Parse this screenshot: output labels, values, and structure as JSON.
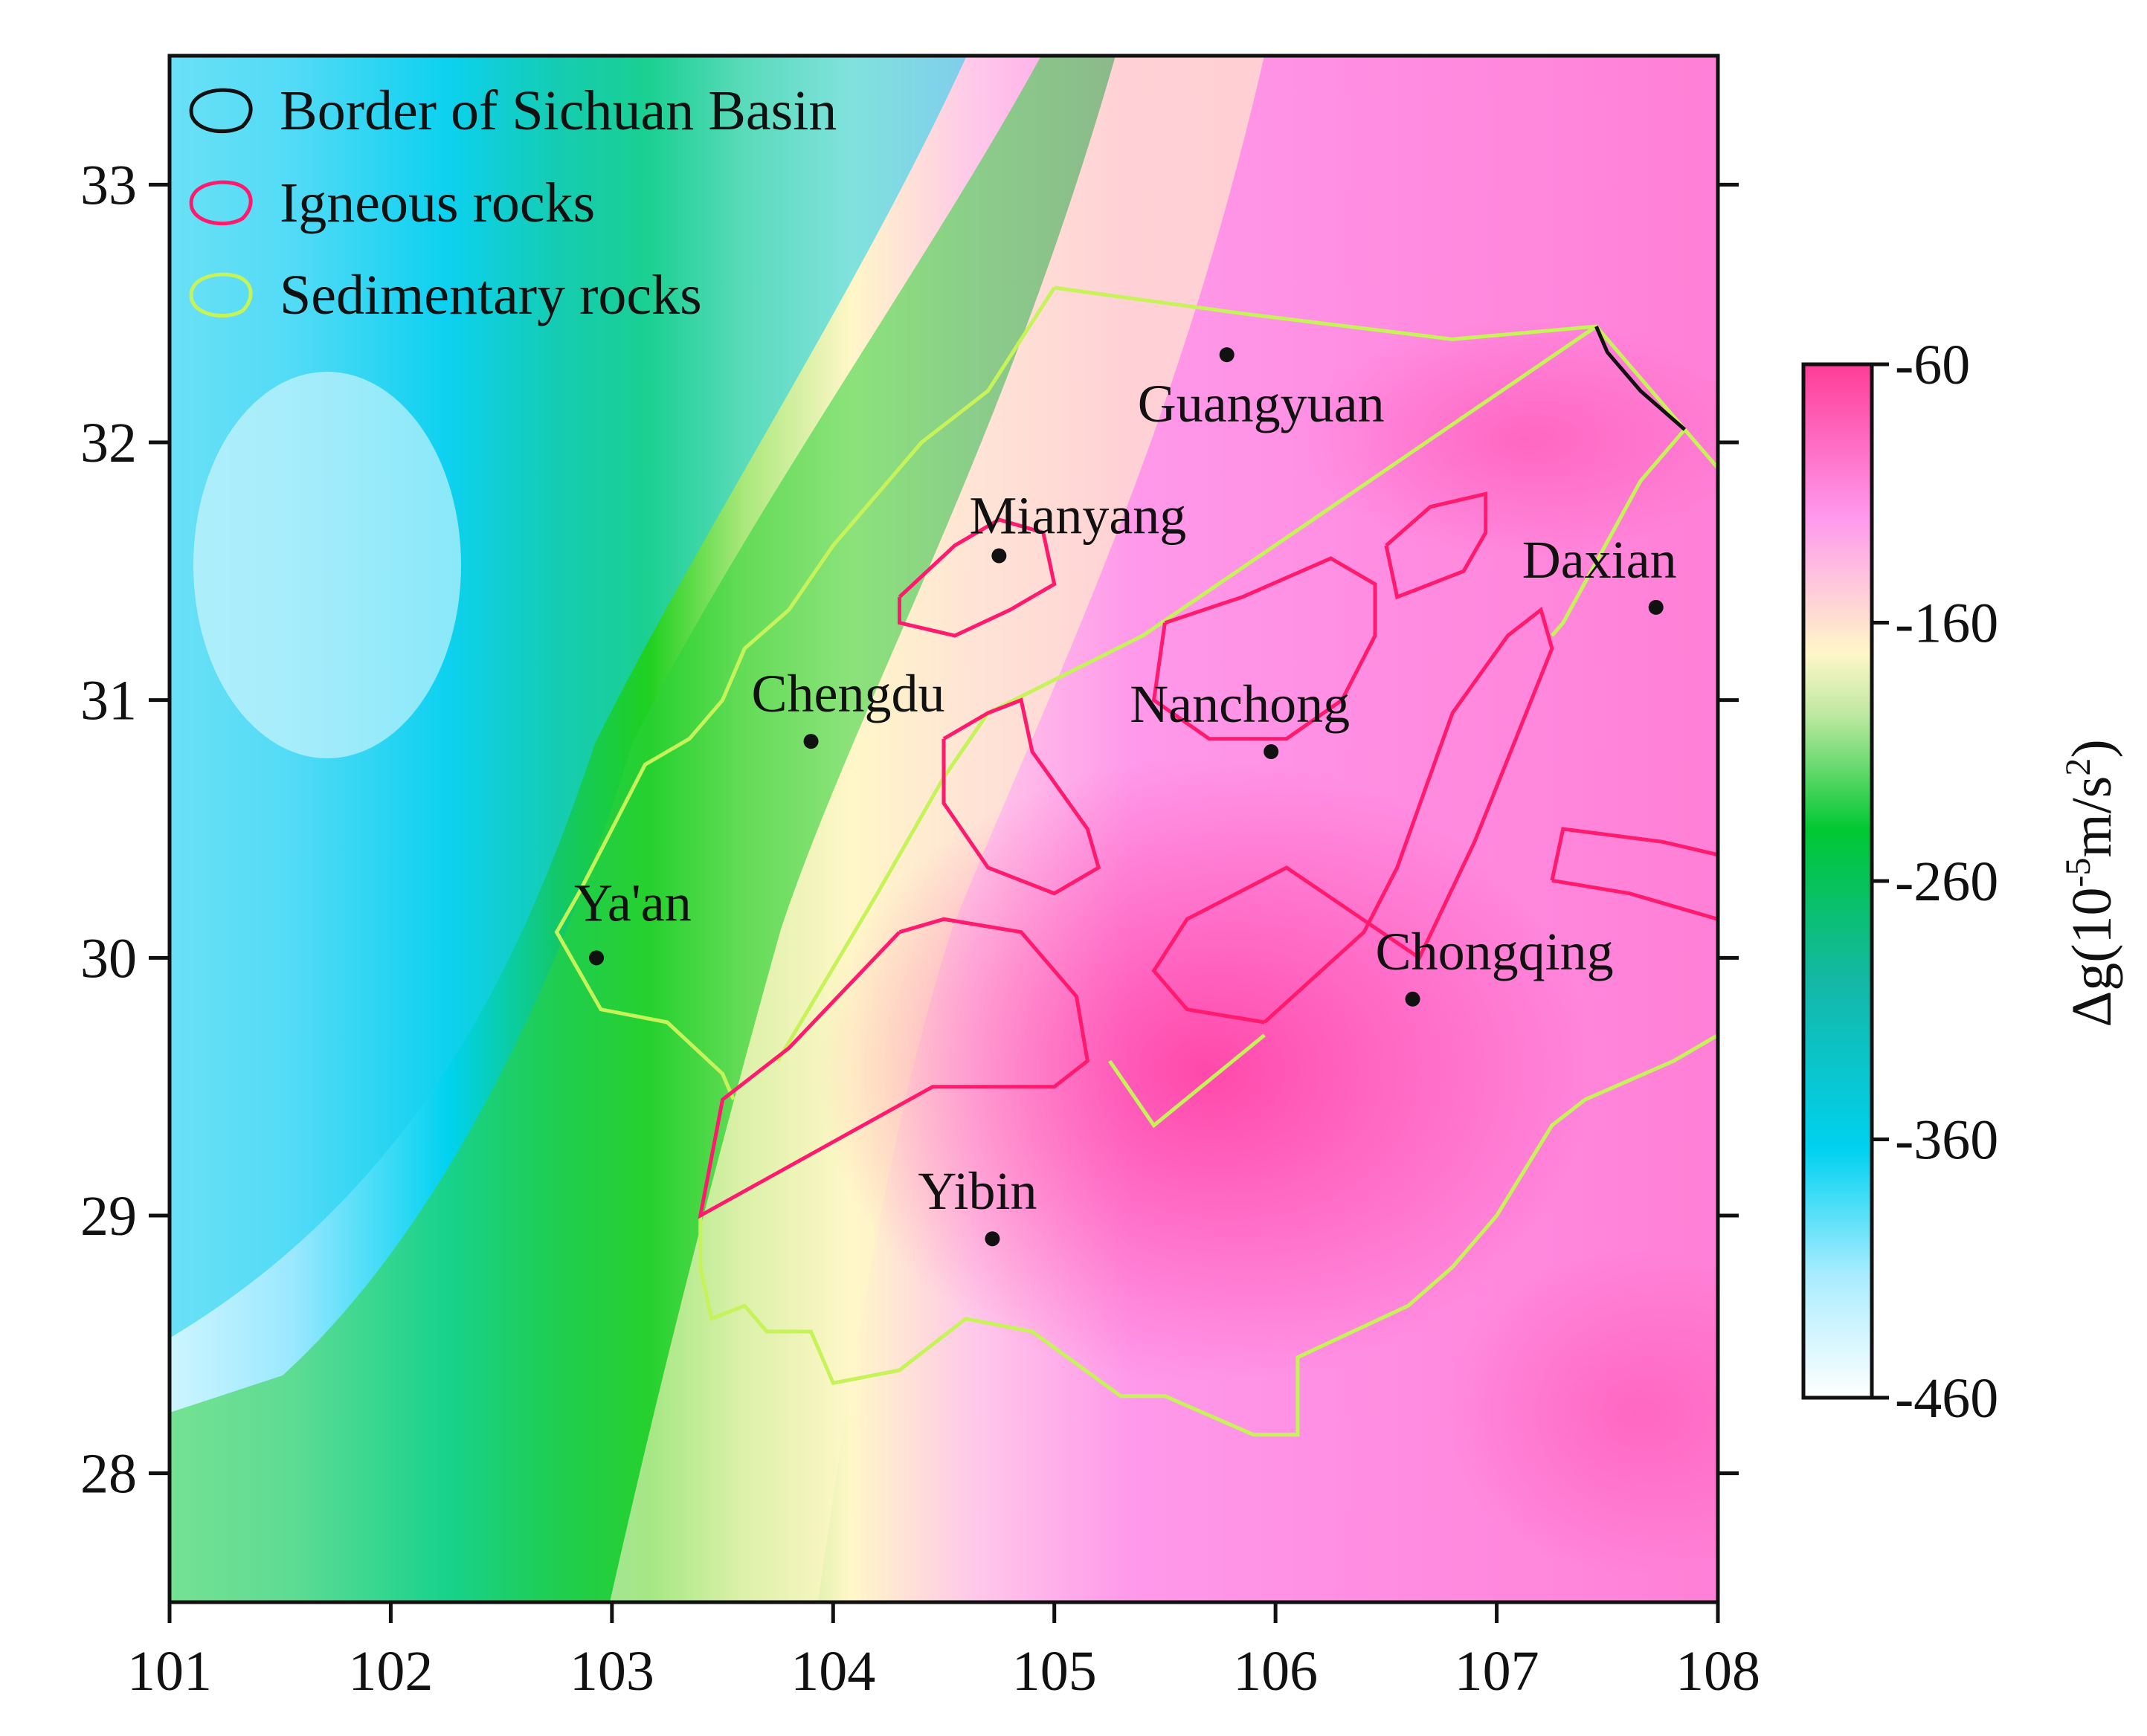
{
  "map": {
    "xlim": [
      101,
      108
    ],
    "ylim": [
      27.5,
      33.5
    ],
    "x_ticks": [
      "101",
      "102",
      "103",
      "104",
      "105",
      "106",
      "107",
      "108"
    ],
    "y_ticks": [
      "28",
      "29",
      "30",
      "31",
      "32",
      "33"
    ]
  },
  "legend": {
    "placement": "top-left",
    "entries": [
      {
        "label": "Border of Sichuan Basin",
        "color": "#111111"
      },
      {
        "label": "Igneous rocks",
        "color": "#ff1a6e"
      },
      {
        "label": "Sedimentary rocks",
        "color": "#c6f25a"
      }
    ]
  },
  "colorbar": {
    "title_main": "Δg(10",
    "title_sup1": "-5",
    "title_mid": "m/s",
    "title_sup2": "2",
    "title_end": ")",
    "labels": [
      "-60",
      "-160",
      "-260",
      "-360",
      "-460"
    ],
    "range": [
      -460,
      -60
    ],
    "colors": [
      "#ffffff",
      "#00d2f0",
      "#00c832",
      "#fff7c8",
      "#ff96ee",
      "#ff3c96"
    ]
  },
  "cities": [
    {
      "name": "Guangyuan",
      "lon": 105.78,
      "lat": 32.34
    },
    {
      "name": "Mianyang",
      "lon": 104.75,
      "lat": 31.56
    },
    {
      "name": "Daxian",
      "lon": 107.72,
      "lat": 31.36
    },
    {
      "name": "Chengdu",
      "lon": 103.9,
      "lat": 30.84
    },
    {
      "name": "Nanchong",
      "lon": 105.98,
      "lat": 30.8
    },
    {
      "name": "Ya'an",
      "lon": 102.93,
      "lat": 30.0
    },
    {
      "name": "Chongqing",
      "lon": 106.62,
      "lat": 29.84
    },
    {
      "name": "Yibin",
      "lon": 104.72,
      "lat": 28.91
    }
  ],
  "border": [
    [
      107.45,
      32.45
    ],
    [
      107.5,
      32.35
    ],
    [
      107.65,
      32.2
    ],
    [
      107.85,
      32.05
    ]
  ],
  "sedimentary": [
    [
      [
        105.0,
        32.6
      ],
      [
        105.85,
        32.5
      ],
      [
        106.8,
        32.4
      ],
      [
        107.45,
        32.45
      ],
      [
        107.85,
        32.05
      ],
      [
        108.0,
        31.9
      ],
      [
        108.05,
        31.9
      ]
    ],
    [
      [
        107.85,
        32.05
      ],
      [
        107.65,
        31.85
      ],
      [
        107.3,
        31.3
      ],
      [
        107.25,
        31.25
      ]
    ],
    [
      [
        108.0,
        29.7
      ],
      [
        107.8,
        29.6
      ],
      [
        107.4,
        29.45
      ],
      [
        107.25,
        29.35
      ],
      [
        107.0,
        29.0
      ],
      [
        106.8,
        28.8
      ],
      [
        106.6,
        28.65
      ],
      [
        106.1,
        28.45
      ],
      [
        106.1,
        28.15
      ],
      [
        105.9,
        28.15
      ],
      [
        105.5,
        28.3
      ],
      [
        105.3,
        28.3
      ],
      [
        104.9,
        28.55
      ],
      [
        104.6,
        28.6
      ],
      [
        104.3,
        28.4
      ],
      [
        104.0,
        28.35
      ],
      [
        103.9,
        28.55
      ],
      [
        103.7,
        28.55
      ],
      [
        103.6,
        28.65
      ],
      [
        103.45,
        28.6
      ],
      [
        103.4,
        28.8
      ],
      [
        103.4,
        29.0
      ]
    ],
    [
      [
        105.0,
        32.6
      ],
      [
        104.7,
        32.2
      ],
      [
        104.4,
        32.0
      ],
      [
        104.0,
        31.6
      ],
      [
        103.8,
        31.35
      ],
      [
        103.6,
        31.2
      ],
      [
        103.5,
        31.0
      ],
      [
        103.35,
        30.85
      ],
      [
        103.15,
        30.75
      ],
      [
        103.0,
        30.5
      ],
      [
        102.85,
        30.25
      ],
      [
        102.75,
        30.1
      ],
      [
        102.95,
        29.8
      ],
      [
        103.25,
        29.75
      ],
      [
        103.5,
        29.55
      ],
      [
        103.55,
        29.45
      ]
    ],
    [
      [
        103.75,
        29.6
      ],
      [
        104.2,
        30.25
      ],
      [
        104.5,
        30.7
      ],
      [
        104.7,
        30.95
      ],
      [
        105.4,
        31.25
      ],
      [
        107.45,
        32.45
      ]
    ],
    [
      [
        105.25,
        29.6
      ],
      [
        105.45,
        29.35
      ],
      [
        105.95,
        29.7
      ]
    ]
  ],
  "igneous": [
    [
      [
        104.3,
        31.4
      ],
      [
        104.55,
        31.6
      ],
      [
        104.75,
        31.7
      ],
      [
        104.95,
        31.65
      ],
      [
        105.0,
        31.45
      ],
      [
        104.8,
        31.35
      ],
      [
        104.55,
        31.25
      ],
      [
        104.3,
        31.3
      ],
      [
        104.3,
        31.4
      ]
    ],
    [
      [
        105.5,
        31.3
      ],
      [
        105.85,
        31.4
      ],
      [
        106.25,
        31.55
      ],
      [
        106.45,
        31.45
      ],
      [
        106.45,
        31.25
      ],
      [
        106.3,
        31.0
      ],
      [
        106.05,
        30.85
      ],
      [
        105.7,
        30.85
      ],
      [
        105.45,
        31.0
      ],
      [
        105.5,
        31.3
      ]
    ],
    [
      [
        106.5,
        31.6
      ],
      [
        106.7,
        31.75
      ],
      [
        106.95,
        31.8
      ],
      [
        106.95,
        31.65
      ],
      [
        106.85,
        31.5
      ],
      [
        106.55,
        31.4
      ],
      [
        106.5,
        31.6
      ]
    ],
    [
      [
        104.5,
        30.85
      ],
      [
        104.7,
        30.95
      ],
      [
        104.85,
        31.0
      ],
      [
        104.9,
        30.8
      ],
      [
        105.15,
        30.5
      ],
      [
        105.2,
        30.35
      ],
      [
        105.0,
        30.25
      ],
      [
        104.7,
        30.35
      ],
      [
        104.5,
        30.6
      ],
      [
        104.5,
        30.85
      ]
    ],
    [
      [
        105.95,
        29.75
      ],
      [
        106.4,
        30.1
      ],
      [
        106.55,
        30.35
      ],
      [
        106.8,
        30.95
      ],
      [
        107.05,
        31.25
      ],
      [
        107.2,
        31.35
      ],
      [
        107.25,
        31.2
      ],
      [
        106.9,
        30.45
      ],
      [
        106.65,
        30.0
      ],
      [
        106.05,
        30.35
      ],
      [
        105.6,
        30.15
      ],
      [
        105.45,
        29.95
      ],
      [
        105.6,
        29.8
      ],
      [
        105.95,
        29.75
      ]
    ],
    [
      [
        107.25,
        30.3
      ],
      [
        107.6,
        30.25
      ],
      [
        108.0,
        30.15
      ],
      [
        108.0,
        30.4
      ],
      [
        107.75,
        30.45
      ],
      [
        107.3,
        30.5
      ],
      [
        107.25,
        30.3
      ]
    ],
    [
      [
        104.3,
        30.1
      ],
      [
        104.5,
        30.15
      ],
      [
        104.85,
        30.1
      ],
      [
        105.1,
        29.85
      ],
      [
        105.15,
        29.6
      ],
      [
        105.0,
        29.5
      ],
      [
        104.45,
        29.5
      ],
      [
        103.4,
        29.0
      ],
      [
        103.5,
        29.45
      ],
      [
        103.8,
        29.65
      ],
      [
        104.3,
        30.1
      ]
    ]
  ],
  "anomaly_field": {
    "type": "gravity-anomaly-grid",
    "note_values_in": "10^-5 m/s^2",
    "west_low": -420,
    "east_high": -80,
    "peak": {
      "lon": 105.6,
      "lat": 29.55,
      "value": -65
    }
  }
}
